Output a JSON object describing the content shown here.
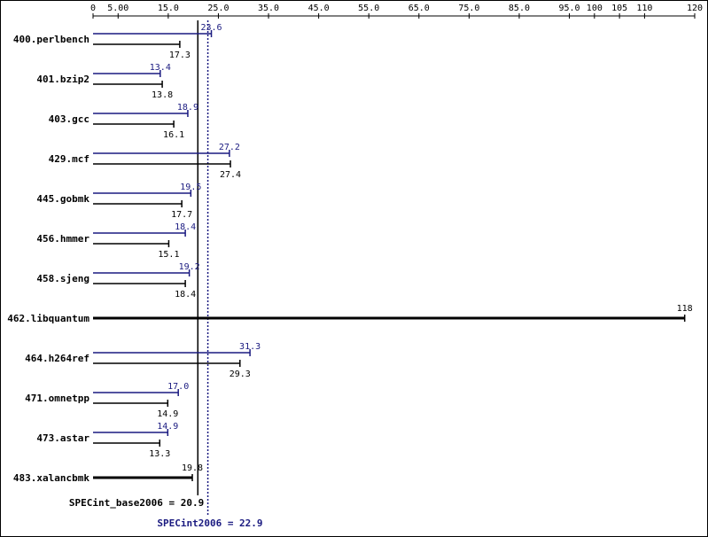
{
  "chart_data": {
    "type": "bar",
    "orientation": "horizontal",
    "xlim": [
      0,
      120
    ],
    "ticks": [
      0,
      5,
      15,
      25,
      35,
      45,
      55,
      65,
      75,
      85,
      95,
      100,
      105,
      110,
      120
    ],
    "tick_labels": [
      "0",
      "5.00",
      "15.0",
      "25.0",
      "35.0",
      "45.0",
      "55.0",
      "65.0",
      "75.0",
      "85.0",
      "95.0",
      "100",
      "105",
      "110",
      "120"
    ],
    "colors": {
      "peak": "#1a1a80",
      "base": "#000000"
    },
    "categories": [
      "400.perlbench",
      "401.bzip2",
      "403.gcc",
      "429.mcf",
      "445.gobmk",
      "456.hmmer",
      "458.sjeng",
      "462.libquantum",
      "464.h264ref",
      "471.omnetpp",
      "473.astar",
      "483.xalancbmk"
    ],
    "benchmarks": [
      {
        "name": "400.perlbench",
        "peak": 23.6,
        "peak_label": "23.6",
        "base": 17.3,
        "base_label": "17.3"
      },
      {
        "name": "401.bzip2",
        "peak": 13.4,
        "peak_label": "13.4",
        "base": 13.8,
        "base_label": "13.8"
      },
      {
        "name": "403.gcc",
        "peak": 18.9,
        "peak_label": "18.9",
        "base": 16.1,
        "base_label": "16.1"
      },
      {
        "name": "429.mcf",
        "peak": 27.2,
        "peak_label": "27.2",
        "base": 27.4,
        "base_label": "27.4"
      },
      {
        "name": "445.gobmk",
        "peak": 19.5,
        "peak_label": "19.5",
        "base": 17.7,
        "base_label": "17.7"
      },
      {
        "name": "456.hmmer",
        "peak": 18.4,
        "peak_label": "18.4",
        "base": 15.1,
        "base_label": "15.1"
      },
      {
        "name": "458.sjeng",
        "peak": 19.2,
        "peak_label": "19.2",
        "base": 18.4,
        "base_label": "18.4"
      },
      {
        "name": "462.libquantum",
        "single": 118,
        "single_label": "118"
      },
      {
        "name": "464.h264ref",
        "peak": 31.3,
        "peak_label": "31.3",
        "base": 29.3,
        "base_label": "29.3"
      },
      {
        "name": "471.omnetpp",
        "peak": 17.0,
        "peak_label": "17.0",
        "base": 14.9,
        "base_label": "14.9"
      },
      {
        "name": "473.astar",
        "peak": 14.9,
        "peak_label": "14.9",
        "base": 13.3,
        "base_label": "13.3"
      },
      {
        "name": "483.xalancbmk",
        "single": 19.8,
        "single_label": "19.8"
      }
    ],
    "summary": {
      "base": {
        "value": 20.9,
        "label": "SPECint_base2006 = 20.9"
      },
      "peak": {
        "value": 22.9,
        "label": "SPECint2006 = 22.9"
      }
    }
  }
}
